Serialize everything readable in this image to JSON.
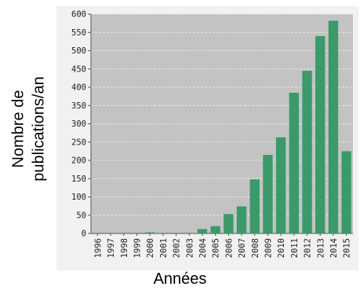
{
  "chart_data": {
    "type": "bar",
    "title": "",
    "xlabel": "Années",
    "ylabel": "Nombre de\npublications/an",
    "categories": [
      "1996",
      "1997",
      "1998",
      "1999",
      "2000",
      "2001",
      "2002",
      "2003",
      "2004",
      "2005",
      "2006",
      "2007",
      "2008",
      "2009",
      "2010",
      "2011",
      "2012",
      "2013",
      "2014",
      "2015"
    ],
    "values": [
      0,
      0,
      0,
      0,
      3,
      0,
      0,
      0,
      12,
      20,
      53,
      74,
      148,
      215,
      263,
      385,
      445,
      540,
      582,
      225
    ],
    "ylim": [
      0,
      600
    ],
    "yticks": [
      "0",
      "50",
      "100",
      "150",
      "200",
      "250",
      "300",
      "350",
      "400",
      "450",
      "500",
      "550",
      "600"
    ],
    "grid": true,
    "colors": {
      "bar": "#3a9a6a",
      "plot_bg": "#c3c3c3",
      "panel_bg": "#f1f1f1",
      "grid": "#e6e6e6",
      "axis": "#555555"
    }
  }
}
